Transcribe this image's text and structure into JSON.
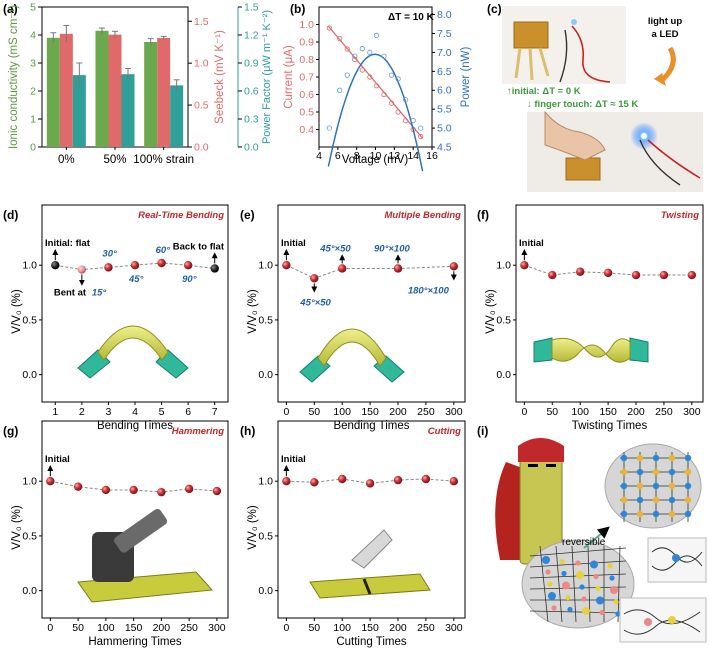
{
  "colors": {
    "green": "#6aaa4d",
    "red": "#e06a6a",
    "teal": "#2f9f9a",
    "orange_arrow": "#e8902a",
    "sphere": "#c0282c",
    "curve_blue": "#2e74b8",
    "angle_blue": "#1f5fa8",
    "title_red": "#c0282c",
    "note_green": "#3c9a3c"
  },
  "chart_data": [
    {
      "panel": "(a)",
      "type": "bar",
      "categories": [
        "0%",
        "50%",
        "100% strain"
      ],
      "series": [
        {
          "name": "Ionic conductivity",
          "axis": "left",
          "values": [
            3.9,
            4.15,
            3.75
          ],
          "errors": [
            0.18,
            0.1,
            0.12
          ]
        },
        {
          "name": "Seebeck",
          "axis": "right1",
          "values": [
            1.35,
            1.34,
            1.3
          ],
          "errors": [
            0.1,
            0.04,
            0.02
          ]
        },
        {
          "name": "Power Factor",
          "axis": "right2",
          "values": [
            0.77,
            0.78,
            0.66
          ],
          "errors": [
            0.13,
            0.06,
            0.06
          ]
        }
      ],
      "ylabel_left": "Ionic conductivity (mS cm⁻¹)",
      "ylabel_right1": "Seebeck (mV K⁻¹)",
      "ylabel_right2": "Power Factor (μW m⁻¹ K⁻²)",
      "ylim_left": [
        0,
        5
      ],
      "ylim_right1": [
        0,
        1.67
      ],
      "ylim_right2": [
        0,
        1.5
      ],
      "yticks_left": [
        "0",
        "1",
        "2",
        "3",
        "4",
        "5"
      ],
      "yticks_right1": [
        "0.0",
        "0.5",
        "1.0",
        "1.5"
      ],
      "yticks_right2": [
        "0.0",
        "0.3",
        "0.6",
        "0.9",
        "1.2",
        "1.5"
      ]
    },
    {
      "panel": "(b)",
      "type": "scatter",
      "title": "ΔT = 10 K",
      "xlabel": "Voltage (mV)",
      "ylabel_left": "Current (μA)",
      "ylabel_right": "Power (nW)",
      "xlim": [
        4,
        16
      ],
      "ylim_left": [
        0.3,
        1.1
      ],
      "ylim_right": [
        4.5,
        8.2
      ],
      "xticks": [
        "4",
        "6",
        "8",
        "10",
        "12",
        "14",
        "16"
      ],
      "yticks_left": [
        "0.4",
        "0.5",
        "0.6",
        "0.7",
        "0.8",
        "0.9",
        "1.0"
      ],
      "yticks_right": [
        "4.5",
        "5.0",
        "5.5",
        "6.0",
        "6.5",
        "7.0",
        "7.5",
        "8.0"
      ],
      "series": [
        {
          "name": "Current",
          "axis": "left",
          "x": [
            5.1,
            6.2,
            7.0,
            7.8,
            8.6,
            9.4,
            10.1,
            10.9,
            11.7,
            12.4,
            13.2,
            14.0,
            14.8
          ],
          "y": [
            0.98,
            0.92,
            0.86,
            0.8,
            0.74,
            0.7,
            0.65,
            0.6,
            0.55,
            0.5,
            0.45,
            0.4,
            0.36
          ],
          "fit": [
            [
              5,
              0.99
            ],
            [
              15,
              0.35
            ]
          ]
        },
        {
          "name": "Power",
          "axis": "right",
          "x": [
            5.1,
            6.2,
            7.0,
            7.8,
            8.6,
            9.4,
            10.1,
            10.9,
            11.7,
            12.4,
            13.2,
            14.0,
            14.8
          ],
          "y": [
            5.0,
            6.0,
            6.4,
            6.9,
            7.1,
            7.0,
            7.45,
            6.9,
            6.4,
            6.3,
            5.75,
            5.2,
            5.0
          ],
          "fit_quadratic": {
            "a": -0.055,
            "vertex_x": 9.95,
            "vertex_y": 6.95
          }
        }
      ]
    },
    {
      "panel": "(d)",
      "type": "scatter",
      "title": "Real-Time Bending",
      "xlabel": "Bending Times",
      "ylabel": "V/V₀ (%)",
      "xlim": [
        0.5,
        7.5
      ],
      "ylim": [
        -0.25,
        1.55
      ],
      "xticks": [
        "1",
        "2",
        "3",
        "4",
        "5",
        "6",
        "7"
      ],
      "ytick_values": [
        0,
        0.5,
        1.0
      ],
      "yticks": [
        "0.0",
        "0.5",
        "1.0"
      ],
      "x": [
        1,
        2,
        3,
        4,
        5,
        6,
        7
      ],
      "y": [
        1.0,
        0.96,
        0.98,
        1.0,
        1.02,
        1.0,
        0.97
      ],
      "annotations": {
        "initial": "Initial: flat",
        "bent": "Bent at",
        "back": "Back to flat"
      },
      "angles": [
        "15°",
        "30°",
        "45°",
        "60°",
        "90°"
      ]
    },
    {
      "panel": "(e)",
      "type": "scatter",
      "title": "Multiple Bending",
      "xlabel": "Bending Times",
      "ylabel": "V/V₀ (%)",
      "xlim": [
        -15,
        320
      ],
      "ylim": [
        -0.25,
        1.55
      ],
      "xticks": [
        "0",
        "50",
        "100",
        "150",
        "200",
        "250",
        "300"
      ],
      "ytick_values": [
        0,
        0.5,
        1.0
      ],
      "yticks": [
        "0.0",
        "0.5",
        "1.0"
      ],
      "x": [
        0,
        50,
        100,
        200,
        300
      ],
      "y": [
        1.0,
        0.88,
        0.97,
        0.97,
        0.99
      ],
      "annotations": {
        "initial": "Initial"
      },
      "labels": [
        "45°×50",
        "45°×50",
        "90°×100",
        "180°×100"
      ]
    },
    {
      "panel": "(f)",
      "type": "scatter",
      "title": "Twisting",
      "xlabel": "Twisting Times",
      "ylabel": "V/V₀ (%)",
      "xlim": [
        -15,
        320
      ],
      "ylim": [
        -0.25,
        1.55
      ],
      "xticks": [
        "0",
        "50",
        "100",
        "150",
        "200",
        "250",
        "300"
      ],
      "ytick_values": [
        0,
        0.5,
        1.0
      ],
      "yticks": [
        "0.0",
        "0.5",
        "1.0"
      ],
      "x": [
        0,
        50,
        100,
        150,
        200,
        250,
        300
      ],
      "y": [
        1.0,
        0.91,
        0.94,
        0.93,
        0.91,
        0.91,
        0.91
      ],
      "annotations": {
        "initial": "Initial"
      }
    },
    {
      "panel": "(g)",
      "type": "scatter",
      "title": "Hammering",
      "xlabel": "Hammering Times",
      "ylabel": "V/V₀ (%)",
      "xlim": [
        -15,
        320
      ],
      "ylim": [
        -0.25,
        1.55
      ],
      "xticks": [
        "0",
        "50",
        "100",
        "150",
        "200",
        "250",
        "300"
      ],
      "ytick_values": [
        0,
        0.5,
        1.0
      ],
      "yticks": [
        "0.0",
        "0.5",
        "1.0"
      ],
      "x": [
        0,
        50,
        100,
        150,
        200,
        250,
        300
      ],
      "y": [
        1.0,
        0.95,
        0.92,
        0.92,
        0.9,
        0.93,
        0.91
      ],
      "annotations": {
        "initial": "Initial"
      }
    },
    {
      "panel": "(h)",
      "type": "scatter",
      "title": "Cutting",
      "xlabel": "Cutting Times",
      "ylabel": "V/V₀ (%)",
      "xlim": [
        -15,
        320
      ],
      "ylim": [
        -0.25,
        1.55
      ],
      "xticks": [
        "0",
        "50",
        "100",
        "150",
        "200",
        "250",
        "300"
      ],
      "ytick_values": [
        0,
        0.5,
        1.0
      ],
      "yticks": [
        "0.0",
        "0.5",
        "1.0"
      ],
      "x": [
        0,
        50,
        100,
        150,
        200,
        250,
        300
      ],
      "y": [
        1.0,
        0.99,
        1.02,
        0.98,
        1.01,
        1.02,
        1.0
      ],
      "annotations": {
        "initial": "Initial"
      }
    }
  ],
  "panel_c": {
    "label": "(c)",
    "light_up": "light up",
    "led": "a LED",
    "initial_note": "↑initial: ΔT = 0 K",
    "touch_note": "↓ finger touch: ΔT ≈ 15 K"
  },
  "panel_i": {
    "label": "(i)",
    "reversible": "reversible"
  }
}
